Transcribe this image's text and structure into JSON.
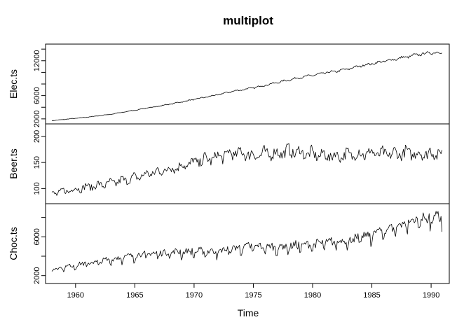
{
  "chart_data": {
    "type": "line",
    "title": "multiplot",
    "xlabel": "Time",
    "xlim": [
      1958,
      1991
    ],
    "x_ticks": [
      "1960",
      "1965",
      "1970",
      "1975",
      "1980",
      "1985",
      "1990"
    ],
    "frequency": "monthly",
    "grid": false,
    "series": [
      {
        "name": "Elec.ts",
        "ylabel": "Elec.ts",
        "y_ticks": [
          "2000",
          "6000",
          "12000"
        ],
        "y_minor_ticks": [
          4000,
          8000,
          10000,
          14000
        ],
        "ylim": [
          1500,
          14500
        ],
        "annual_means": {
          "1958": 1700,
          "1959": 1900,
          "1960": 2100,
          "1961": 2300,
          "1962": 2550,
          "1963": 2800,
          "1964": 3150,
          "1965": 3500,
          "1966": 3850,
          "1967": 4200,
          "1968": 4550,
          "1969": 4950,
          "1970": 5350,
          "1971": 5750,
          "1972": 6150,
          "1973": 6650,
          "1974": 7000,
          "1975": 7350,
          "1976": 7800,
          "1977": 8250,
          "1978": 8700,
          "1979": 9150,
          "1980": 9500,
          "1981": 9900,
          "1982": 10200,
          "1983": 10600,
          "1984": 11100,
          "1985": 11500,
          "1986": 11900,
          "1987": 12300,
          "1988": 12700,
          "1989": 13100,
          "1990": 13400
        }
      },
      {
        "name": "Beer.ts",
        "ylabel": "Beer.ts",
        "y_ticks": [
          "100",
          "150",
          "200"
        ],
        "ylim": [
          75,
          220
        ],
        "annual_means": {
          "1958": 90,
          "1959": 94,
          "1960": 99,
          "1961": 103,
          "1962": 106,
          "1963": 110,
          "1964": 115,
          "1965": 120,
          "1966": 127,
          "1967": 132,
          "1968": 138,
          "1969": 143,
          "1970": 150,
          "1971": 155,
          "1972": 160,
          "1973": 166,
          "1974": 168,
          "1975": 163,
          "1976": 166,
          "1977": 167,
          "1978": 171,
          "1979": 168,
          "1980": 165,
          "1981": 163,
          "1982": 162,
          "1983": 164,
          "1984": 166,
          "1985": 168,
          "1986": 165,
          "1987": 166,
          "1988": 168,
          "1989": 166,
          "1990": 167
        }
      },
      {
        "name": "Choc.ts",
        "ylabel": "Choc.ts",
        "y_ticks": [
          "2000",
          "6000"
        ],
        "y_minor_ticks": [
          4000,
          8000
        ],
        "ylim": [
          1400,
          9200
        ],
        "annual_means": {
          "1958": 2600,
          "1959": 2800,
          "1960": 3000,
          "1961": 3200,
          "1962": 3350,
          "1963": 3600,
          "1964": 3800,
          "1965": 4000,
          "1966": 4100,
          "1967": 4200,
          "1968": 4300,
          "1969": 4350,
          "1970": 4350,
          "1971": 4400,
          "1972": 4400,
          "1973": 4600,
          "1974": 4800,
          "1975": 4900,
          "1976": 4850,
          "1977": 4800,
          "1978": 4900,
          "1979": 5000,
          "1980": 5100,
          "1981": 5250,
          "1982": 5350,
          "1983": 5500,
          "1984": 5700,
          "1985": 6100,
          "1986": 6500,
          "1987": 6900,
          "1988": 7300,
          "1989": 7600,
          "1990": 7700
        }
      }
    ]
  }
}
